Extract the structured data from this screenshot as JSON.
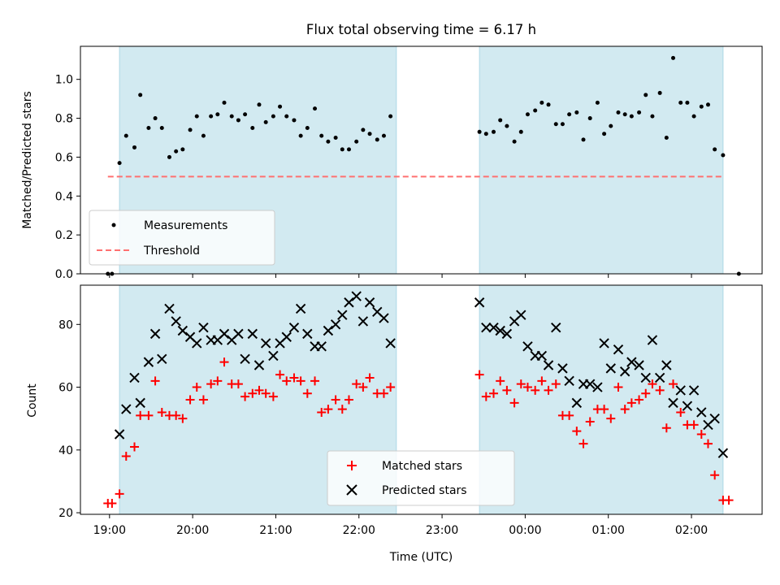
{
  "chart_data": [
    {
      "type": "scatter",
      "title": "Flux total observing time = 6.17 h",
      "ylabel": "Matched/Predicted stars",
      "xlabel": "",
      "xlim": [
        -0.35,
        7.85
      ],
      "ylim": [
        0.0,
        1.17
      ],
      "yticks": [
        0.0,
        0.2,
        0.4,
        0.6,
        0.8,
        1.0
      ],
      "yticklabels": [
        "0.0",
        "0.2",
        "0.4",
        "0.6",
        "0.8",
        "1.0"
      ],
      "x_unit": "hours since 19:00 UTC",
      "shaded_intervals": [
        [
          0.12,
          3.45
        ],
        [
          4.45,
          7.38
        ]
      ],
      "threshold": 0.5,
      "legend": {
        "position": "lower-left",
        "entries": [
          "Measurements",
          "Threshold"
        ]
      },
      "series": [
        {
          "name": "Measurements",
          "marker": "dot",
          "color": "#000000",
          "x": [
            -0.02,
            0.03,
            0.12,
            0.2,
            0.3,
            0.37,
            0.47,
            0.55,
            0.63,
            0.72,
            0.8,
            0.88,
            0.97,
            1.05,
            1.13,
            1.22,
            1.3,
            1.38,
            1.47,
            1.55,
            1.63,
            1.72,
            1.8,
            1.88,
            1.97,
            2.05,
            2.13,
            2.22,
            2.3,
            2.38,
            2.47,
            2.55,
            2.63,
            2.72,
            2.8,
            2.88,
            2.97,
            3.05,
            3.13,
            3.22,
            3.3,
            3.38,
            4.45,
            4.53,
            4.62,
            4.7,
            4.78,
            4.87,
            4.95,
            5.03,
            5.12,
            5.2,
            5.28,
            5.37,
            5.45,
            5.53,
            5.62,
            5.7,
            5.78,
            5.87,
            5.95,
            6.03,
            6.12,
            6.2,
            6.28,
            6.37,
            6.45,
            6.53,
            6.62,
            6.7,
            6.78,
            6.87,
            6.95,
            7.03,
            7.12,
            7.2,
            7.28,
            7.38,
            7.57
          ],
          "y": [
            0.0,
            0.0,
            0.57,
            0.71,
            0.65,
            0.92,
            0.75,
            0.8,
            0.75,
            0.6,
            0.63,
            0.64,
            0.74,
            0.81,
            0.71,
            0.81,
            0.82,
            0.88,
            0.81,
            0.79,
            0.82,
            0.75,
            0.87,
            0.78,
            0.81,
            0.86,
            0.81,
            0.79,
            0.71,
            0.75,
            0.85,
            0.71,
            0.68,
            0.7,
            0.64,
            0.64,
            0.68,
            0.74,
            0.72,
            0.69,
            0.71,
            0.81,
            0.73,
            0.72,
            0.73,
            0.79,
            0.76,
            0.68,
            0.73,
            0.82,
            0.84,
            0.88,
            0.87,
            0.77,
            0.77,
            0.82,
            0.83,
            0.69,
            0.8,
            0.88,
            0.72,
            0.76,
            0.83,
            0.82,
            0.81,
            0.83,
            0.92,
            0.81,
            0.93,
            0.7,
            1.11,
            0.88,
            0.88,
            0.81,
            0.86,
            0.87,
            0.64,
            0.61,
            0.0
          ]
        },
        {
          "name": "Threshold",
          "style": "dashed",
          "color": "#ff7070",
          "x": [
            -0.02,
            7.38
          ],
          "y": [
            0.5,
            0.5
          ]
        }
      ]
    },
    {
      "type": "scatter",
      "title": "",
      "xlabel": "Time (UTC)",
      "ylabel": "Count",
      "xlim": [
        -0.35,
        7.85
      ],
      "ylim": [
        19.5,
        92.5
      ],
      "xticks": [
        0,
        1,
        2,
        3,
        4,
        5,
        6,
        7
      ],
      "xticklabels": [
        "19:00",
        "20:00",
        "21:00",
        "22:00",
        "23:00",
        "00:00",
        "01:00",
        "02:00"
      ],
      "yticks": [
        20,
        40,
        60,
        80
      ],
      "yticklabels": [
        "20",
        "40",
        "60",
        "80"
      ],
      "x_unit": "hours since 19:00 UTC",
      "shaded_intervals": [
        [
          0.12,
          3.45
        ],
        [
          4.45,
          7.38
        ]
      ],
      "legend": {
        "position": "lower-center",
        "entries": [
          "Matched stars",
          "Predicted stars"
        ]
      },
      "series": [
        {
          "name": "Matched stars",
          "marker": "plus",
          "color": "#ff0000",
          "x": [
            -0.02,
            0.03,
            0.12,
            0.2,
            0.3,
            0.37,
            0.47,
            0.55,
            0.63,
            0.72,
            0.8,
            0.88,
            0.97,
            1.05,
            1.13,
            1.22,
            1.3,
            1.38,
            1.47,
            1.55,
            1.63,
            1.72,
            1.8,
            1.88,
            1.97,
            2.05,
            2.13,
            2.22,
            2.3,
            2.38,
            2.47,
            2.55,
            2.63,
            2.72,
            2.8,
            2.88,
            2.97,
            3.05,
            3.13,
            3.22,
            3.3,
            3.38,
            4.45,
            4.53,
            4.62,
            4.7,
            4.78,
            4.87,
            4.95,
            5.03,
            5.12,
            5.2,
            5.28,
            5.37,
            5.45,
            5.53,
            5.62,
            5.7,
            5.78,
            5.87,
            5.95,
            6.03,
            6.12,
            6.2,
            6.28,
            6.37,
            6.45,
            6.53,
            6.62,
            6.7,
            6.78,
            6.87,
            6.95,
            7.03,
            7.12,
            7.2,
            7.28,
            7.38,
            7.45
          ],
          "y": [
            23,
            23,
            26,
            38,
            41,
            51,
            51,
            62,
            52,
            51,
            51,
            50,
            56,
            60,
            56,
            61,
            62,
            68,
            61,
            61,
            57,
            58,
            59,
            58,
            57,
            64,
            62,
            63,
            62,
            58,
            62,
            52,
            53,
            56,
            53,
            56,
            61,
            60,
            63,
            58,
            58,
            60,
            64,
            57,
            58,
            62,
            59,
            55,
            61,
            60,
            59,
            62,
            59,
            61,
            51,
            51,
            46,
            42,
            49,
            53,
            53,
            50,
            60,
            53,
            55,
            56,
            58,
            61,
            59,
            47,
            61,
            52,
            48,
            48,
            45,
            42,
            32,
            24,
            24
          ]
        },
        {
          "name": "Predicted stars",
          "marker": "x",
          "color": "#000000",
          "x": [
            0.12,
            0.2,
            0.3,
            0.37,
            0.47,
            0.55,
            0.63,
            0.72,
            0.8,
            0.88,
            0.97,
            1.05,
            1.13,
            1.22,
            1.3,
            1.38,
            1.47,
            1.55,
            1.63,
            1.72,
            1.8,
            1.88,
            1.97,
            2.05,
            2.13,
            2.22,
            2.3,
            2.38,
            2.47,
            2.55,
            2.63,
            2.72,
            2.8,
            2.88,
            2.97,
            3.05,
            3.13,
            3.22,
            3.3,
            3.38,
            4.45,
            4.53,
            4.62,
            4.7,
            4.78,
            4.87,
            4.95,
            5.03,
            5.12,
            5.2,
            5.28,
            5.37,
            5.45,
            5.53,
            5.62,
            5.7,
            5.78,
            5.87,
            5.95,
            6.03,
            6.12,
            6.2,
            6.28,
            6.37,
            6.45,
            6.53,
            6.62,
            6.7,
            6.78,
            6.87,
            6.95,
            7.03,
            7.12,
            7.2,
            7.28,
            7.38
          ],
          "y": [
            45,
            53,
            63,
            55,
            68,
            77,
            69,
            85,
            81,
            78,
            76,
            74,
            79,
            75,
            75,
            77,
            75,
            77,
            69,
            77,
            67,
            74,
            70,
            74,
            76,
            79,
            85,
            77,
            73,
            73,
            78,
            80,
            83,
            87,
            89,
            81,
            87,
            84,
            82,
            74,
            87,
            79,
            79,
            78,
            77,
            81,
            83,
            73,
            70,
            70,
            67,
            79,
            66,
            62,
            55,
            61,
            61,
            60,
            74,
            66,
            72,
            65,
            68,
            67,
            63,
            75,
            63,
            67,
            55,
            59,
            54,
            59,
            52,
            48,
            50,
            39
          ]
        }
      ]
    }
  ],
  "colors": {
    "shade": "#add8e6",
    "matched": "#ff0000",
    "predicted": "#000000",
    "threshold": "#ff7070",
    "measurement": "#000000"
  }
}
